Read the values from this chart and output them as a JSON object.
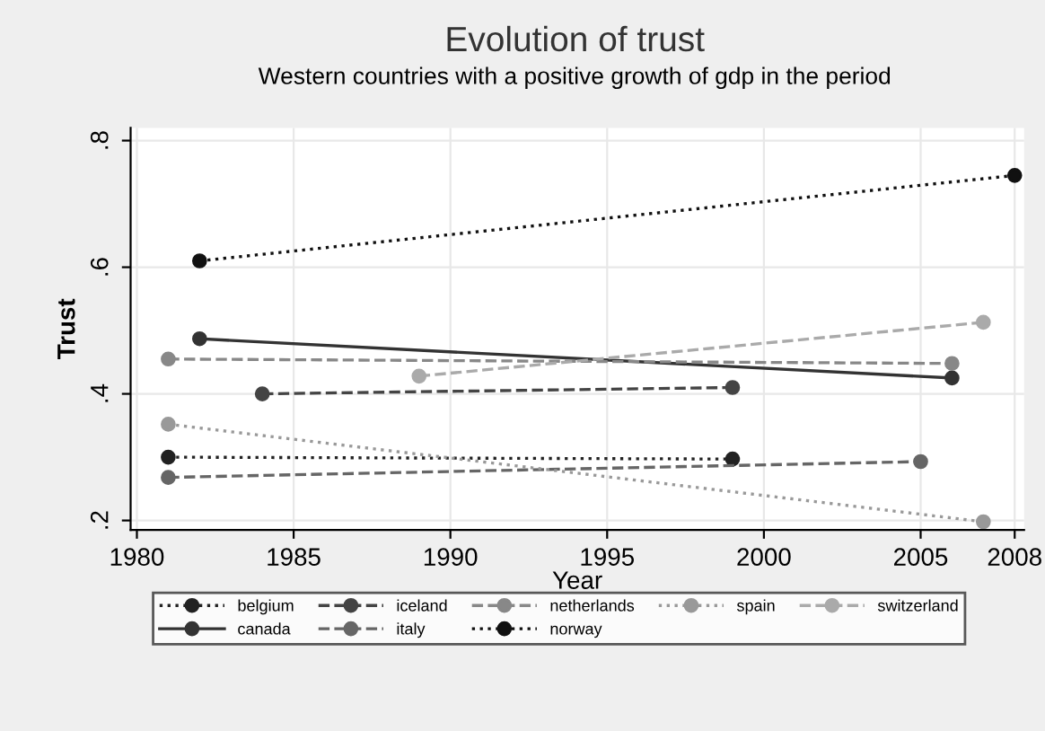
{
  "chart_data": {
    "type": "line",
    "title": "Evolution of trust",
    "subtitle": "Western countries with a positive growth of gdp in the period",
    "xlabel": "Year",
    "ylabel": "Trust",
    "xlim": [
      1979.8,
      2008.3
    ],
    "xticks": [
      1980,
      1985,
      1990,
      1995,
      2000,
      2005,
      2008
    ],
    "ylim": [
      0.185,
      0.82
    ],
    "yticks": [
      {
        "value": 0.2,
        "label": ".2"
      },
      {
        "value": 0.4,
        "label": ".4"
      },
      {
        "value": 0.6,
        "label": ".6"
      },
      {
        "value": 0.8,
        "label": ".8"
      }
    ],
    "grid": true,
    "legend": "bottom",
    "marker": "circle",
    "series": [
      {
        "name": "belgium",
        "color": "#222222",
        "line_style": "dotted",
        "x": [
          1981,
          1999
        ],
        "values": [
          0.3,
          0.297
        ]
      },
      {
        "name": "canada",
        "color": "#333333",
        "line_style": "solid",
        "x": [
          1982,
          2006
        ],
        "values": [
          0.487,
          0.425
        ]
      },
      {
        "name": "iceland",
        "color": "#444444",
        "line_style": "dashed",
        "x": [
          1984,
          1999
        ],
        "values": [
          0.4,
          0.41
        ]
      },
      {
        "name": "italy",
        "color": "#666666",
        "line_style": "dashed",
        "x": [
          1981,
          2005
        ],
        "values": [
          0.268,
          0.293
        ]
      },
      {
        "name": "netherlands",
        "color": "#888888",
        "line_style": "dashed",
        "x": [
          1981,
          2006
        ],
        "values": [
          0.455,
          0.448
        ]
      },
      {
        "name": "norway",
        "color": "#111111",
        "line_style": "dotted",
        "x": [
          1982,
          2008
        ],
        "values": [
          0.61,
          0.745
        ]
      },
      {
        "name": "spain",
        "color": "#999999",
        "line_style": "dotted",
        "x": [
          1981,
          2007
        ],
        "values": [
          0.352,
          0.198
        ]
      },
      {
        "name": "switzerland",
        "color": "#aaaaaa",
        "line_style": "dashed",
        "x": [
          1989,
          2007
        ],
        "values": [
          0.428,
          0.513
        ]
      }
    ]
  }
}
